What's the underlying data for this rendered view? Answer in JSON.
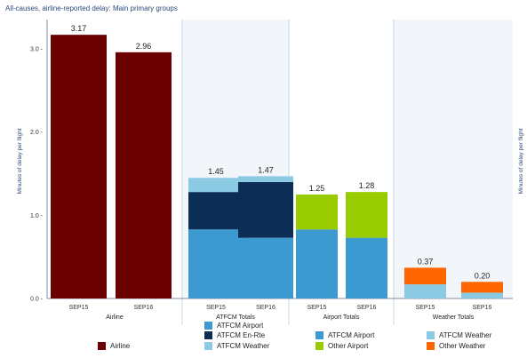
{
  "chart_data": {
    "type": "bar",
    "title": "All-causes, airline-reported delay: Main primary groups",
    "ylabel": "Minutes of delay per flight",
    "ylabel_right": "Minutes of delay per flight",
    "ylim": [
      0,
      3.3
    ],
    "yticks": [
      0,
      1,
      2,
      3
    ],
    "ytick_labels": [
      "0.0 -",
      "1.0 -",
      "2.0 -",
      "3.0 -"
    ],
    "grid": false,
    "legend_placement": "bottom",
    "groups": [
      {
        "name": "Airline",
        "bars": [
          {
            "x": "SEP15",
            "total_label": "3.17",
            "segments": [
              {
                "series": "Airline",
                "value": 3.17,
                "color": "#6b0000"
              }
            ]
          },
          {
            "x": "SEP16",
            "total_label": "2.96",
            "segments": [
              {
                "series": "Airline",
                "value": 2.96,
                "color": "#6b0000"
              }
            ]
          }
        ]
      },
      {
        "name": "ATFCM Totals",
        "bars": [
          {
            "x": "SEP15",
            "total_label": "1.45",
            "segments": [
              {
                "series": "ATFCM Airport",
                "value": 0.83,
                "color": "#3d9ad1"
              },
              {
                "series": "ATFCM En-Rte",
                "value": 0.45,
                "color": "#0c2d55"
              },
              {
                "series": "ATFCM Weather",
                "value": 0.17,
                "color": "#8ccae3"
              }
            ]
          },
          {
            "x": "SEP16",
            "total_label": "1.47",
            "segments": [
              {
                "series": "ATFCM Airport",
                "value": 0.73,
                "color": "#3d9ad1"
              },
              {
                "series": "ATFCM En-Rte",
                "value": 0.67,
                "color": "#0c2d55"
              },
              {
                "series": "ATFCM Weather",
                "value": 0.07,
                "color": "#8ccae3"
              }
            ]
          }
        ]
      },
      {
        "name": "Airport Totals",
        "bars": [
          {
            "x": "SEP15",
            "total_label": "1.25",
            "segments": [
              {
                "series": "ATFCM Airport",
                "value": 0.83,
                "color": "#3d9ad1"
              },
              {
                "series": "Other Airport",
                "value": 0.42,
                "color": "#99cc00"
              }
            ]
          },
          {
            "x": "SEP16",
            "total_label": "1.28",
            "segments": [
              {
                "series": "ATFCM Airport",
                "value": 0.73,
                "color": "#3d9ad1"
              },
              {
                "series": "Other Airport",
                "value": 0.55,
                "color": "#99cc00"
              }
            ]
          }
        ]
      },
      {
        "name": "Weather Totals",
        "bars": [
          {
            "x": "SEP15",
            "total_label": "0.37",
            "segments": [
              {
                "series": "ATFCM Weather",
                "value": 0.17,
                "color": "#8ccae3"
              },
              {
                "series": "Other Weather",
                "value": 0.2,
                "color": "#ff6600"
              }
            ]
          },
          {
            "x": "SEP16",
            "total_label": "0.20",
            "segments": [
              {
                "series": "ATFCM Weather",
                "value": 0.07,
                "color": "#8ccae3"
              },
              {
                "series": "Other Weather",
                "value": 0.13,
                "color": "#ff6600"
              }
            ]
          }
        ]
      }
    ],
    "legend": [
      {
        "label": "Airline",
        "color": "#6b0000"
      },
      {
        "label": "ATFCM Airport",
        "color": "#3d9ad1"
      },
      {
        "label": "ATFCM En-Rte",
        "color": "#0c2d55"
      },
      {
        "label": "ATFCM Weather",
        "color": "#8ccae3"
      },
      {
        "label": "ATFCM Airport",
        "color": "#3d9ad1"
      },
      {
        "label": "Other Airport",
        "color": "#99cc00"
      },
      {
        "label": "ATFCM Weather",
        "color": "#8ccae3"
      },
      {
        "label": "Other Weather",
        "color": "#ff6600"
      }
    ]
  }
}
